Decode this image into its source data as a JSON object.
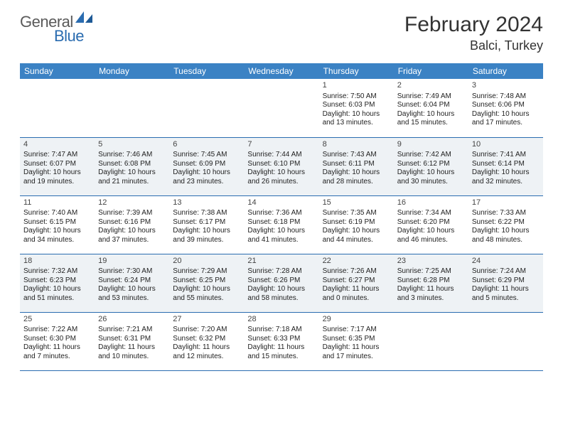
{
  "brand": {
    "part1": "General",
    "part2": "Blue"
  },
  "title": "February 2024",
  "location": "Balci, Turkey",
  "colors": {
    "header_bg": "#3b82c4",
    "header_fg": "#ffffff",
    "rule": "#2a6cb0",
    "alt_row_bg": "#eef2f5",
    "text": "#222222",
    "brand_gray": "#5a5a5a",
    "brand_blue": "#2a6cb0"
  },
  "dayHeaders": [
    "Sunday",
    "Monday",
    "Tuesday",
    "Wednesday",
    "Thursday",
    "Friday",
    "Saturday"
  ],
  "weeks": [
    {
      "alt": false,
      "days": [
        {
          "num": "",
          "lines": []
        },
        {
          "num": "",
          "lines": []
        },
        {
          "num": "",
          "lines": []
        },
        {
          "num": "",
          "lines": []
        },
        {
          "num": "1",
          "lines": [
            "Sunrise: 7:50 AM",
            "Sunset: 6:03 PM",
            "Daylight: 10 hours",
            "and 13 minutes."
          ]
        },
        {
          "num": "2",
          "lines": [
            "Sunrise: 7:49 AM",
            "Sunset: 6:04 PM",
            "Daylight: 10 hours",
            "and 15 minutes."
          ]
        },
        {
          "num": "3",
          "lines": [
            "Sunrise: 7:48 AM",
            "Sunset: 6:06 PM",
            "Daylight: 10 hours",
            "and 17 minutes."
          ]
        }
      ]
    },
    {
      "alt": true,
      "days": [
        {
          "num": "4",
          "lines": [
            "Sunrise: 7:47 AM",
            "Sunset: 6:07 PM",
            "Daylight: 10 hours",
            "and 19 minutes."
          ]
        },
        {
          "num": "5",
          "lines": [
            "Sunrise: 7:46 AM",
            "Sunset: 6:08 PM",
            "Daylight: 10 hours",
            "and 21 minutes."
          ]
        },
        {
          "num": "6",
          "lines": [
            "Sunrise: 7:45 AM",
            "Sunset: 6:09 PM",
            "Daylight: 10 hours",
            "and 23 minutes."
          ]
        },
        {
          "num": "7",
          "lines": [
            "Sunrise: 7:44 AM",
            "Sunset: 6:10 PM",
            "Daylight: 10 hours",
            "and 26 minutes."
          ]
        },
        {
          "num": "8",
          "lines": [
            "Sunrise: 7:43 AM",
            "Sunset: 6:11 PM",
            "Daylight: 10 hours",
            "and 28 minutes."
          ]
        },
        {
          "num": "9",
          "lines": [
            "Sunrise: 7:42 AM",
            "Sunset: 6:12 PM",
            "Daylight: 10 hours",
            "and 30 minutes."
          ]
        },
        {
          "num": "10",
          "lines": [
            "Sunrise: 7:41 AM",
            "Sunset: 6:14 PM",
            "Daylight: 10 hours",
            "and 32 minutes."
          ]
        }
      ]
    },
    {
      "alt": false,
      "days": [
        {
          "num": "11",
          "lines": [
            "Sunrise: 7:40 AM",
            "Sunset: 6:15 PM",
            "Daylight: 10 hours",
            "and 34 minutes."
          ]
        },
        {
          "num": "12",
          "lines": [
            "Sunrise: 7:39 AM",
            "Sunset: 6:16 PM",
            "Daylight: 10 hours",
            "and 37 minutes."
          ]
        },
        {
          "num": "13",
          "lines": [
            "Sunrise: 7:38 AM",
            "Sunset: 6:17 PM",
            "Daylight: 10 hours",
            "and 39 minutes."
          ]
        },
        {
          "num": "14",
          "lines": [
            "Sunrise: 7:36 AM",
            "Sunset: 6:18 PM",
            "Daylight: 10 hours",
            "and 41 minutes."
          ]
        },
        {
          "num": "15",
          "lines": [
            "Sunrise: 7:35 AM",
            "Sunset: 6:19 PM",
            "Daylight: 10 hours",
            "and 44 minutes."
          ]
        },
        {
          "num": "16",
          "lines": [
            "Sunrise: 7:34 AM",
            "Sunset: 6:20 PM",
            "Daylight: 10 hours",
            "and 46 minutes."
          ]
        },
        {
          "num": "17",
          "lines": [
            "Sunrise: 7:33 AM",
            "Sunset: 6:22 PM",
            "Daylight: 10 hours",
            "and 48 minutes."
          ]
        }
      ]
    },
    {
      "alt": true,
      "days": [
        {
          "num": "18",
          "lines": [
            "Sunrise: 7:32 AM",
            "Sunset: 6:23 PM",
            "Daylight: 10 hours",
            "and 51 minutes."
          ]
        },
        {
          "num": "19",
          "lines": [
            "Sunrise: 7:30 AM",
            "Sunset: 6:24 PM",
            "Daylight: 10 hours",
            "and 53 minutes."
          ]
        },
        {
          "num": "20",
          "lines": [
            "Sunrise: 7:29 AM",
            "Sunset: 6:25 PM",
            "Daylight: 10 hours",
            "and 55 minutes."
          ]
        },
        {
          "num": "21",
          "lines": [
            "Sunrise: 7:28 AM",
            "Sunset: 6:26 PM",
            "Daylight: 10 hours",
            "and 58 minutes."
          ]
        },
        {
          "num": "22",
          "lines": [
            "Sunrise: 7:26 AM",
            "Sunset: 6:27 PM",
            "Daylight: 11 hours",
            "and 0 minutes."
          ]
        },
        {
          "num": "23",
          "lines": [
            "Sunrise: 7:25 AM",
            "Sunset: 6:28 PM",
            "Daylight: 11 hours",
            "and 3 minutes."
          ]
        },
        {
          "num": "24",
          "lines": [
            "Sunrise: 7:24 AM",
            "Sunset: 6:29 PM",
            "Daylight: 11 hours",
            "and 5 minutes."
          ]
        }
      ]
    },
    {
      "alt": false,
      "days": [
        {
          "num": "25",
          "lines": [
            "Sunrise: 7:22 AM",
            "Sunset: 6:30 PM",
            "Daylight: 11 hours",
            "and 7 minutes."
          ]
        },
        {
          "num": "26",
          "lines": [
            "Sunrise: 7:21 AM",
            "Sunset: 6:31 PM",
            "Daylight: 11 hours",
            "and 10 minutes."
          ]
        },
        {
          "num": "27",
          "lines": [
            "Sunrise: 7:20 AM",
            "Sunset: 6:32 PM",
            "Daylight: 11 hours",
            "and 12 minutes."
          ]
        },
        {
          "num": "28",
          "lines": [
            "Sunrise: 7:18 AM",
            "Sunset: 6:33 PM",
            "Daylight: 11 hours",
            "and 15 minutes."
          ]
        },
        {
          "num": "29",
          "lines": [
            "Sunrise: 7:17 AM",
            "Sunset: 6:35 PM",
            "Daylight: 11 hours",
            "and 17 minutes."
          ]
        },
        {
          "num": "",
          "lines": []
        },
        {
          "num": "",
          "lines": []
        }
      ]
    }
  ]
}
